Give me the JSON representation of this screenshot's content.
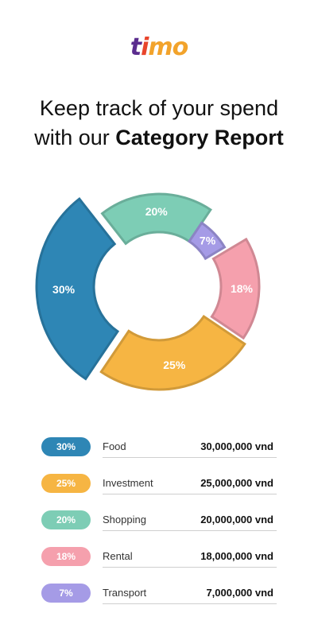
{
  "logo": {
    "part1": "t",
    "part2": "i",
    "part3": "mo"
  },
  "headline": {
    "line1": "Keep track of your spend",
    "line2_prefix": "with our ",
    "line2_bold": "Category Report"
  },
  "chart_data": {
    "type": "pie",
    "style": "donut",
    "title": "",
    "series": [
      {
        "name": "Food",
        "value": 30,
        "label": "30%",
        "color": "#2e86b5",
        "exploded": true
      },
      {
        "name": "Shopping",
        "value": 20,
        "label": "20%",
        "color": "#7dcdb5",
        "exploded": false
      },
      {
        "name": "Transport",
        "value": 7,
        "label": "7%",
        "color": "#a59be6",
        "exploded": false
      },
      {
        "name": "Rental",
        "value": 18,
        "label": "18%",
        "color": "#f5a0ad",
        "exploded": true
      },
      {
        "name": "Investment",
        "value": 25,
        "label": "25%",
        "color": "#f6b543",
        "exploded": false
      }
    ]
  },
  "legend": [
    {
      "percent": "30%",
      "name": "Food",
      "amount": "30,000,000 vnd",
      "color": "#2e86b5"
    },
    {
      "percent": "25%",
      "name": "Investment",
      "amount": "25,000,000 vnd",
      "color": "#f6b543"
    },
    {
      "percent": "20%",
      "name": "Shopping",
      "amount": "20,000,000 vnd",
      "color": "#7dcdb5"
    },
    {
      "percent": "18%",
      "name": "Rental",
      "amount": "18,000,000 vnd",
      "color": "#f5a0ad"
    },
    {
      "percent": "7%",
      "name": "Transport",
      "amount": "7,000,000 vnd",
      "color": "#a59be6"
    }
  ]
}
